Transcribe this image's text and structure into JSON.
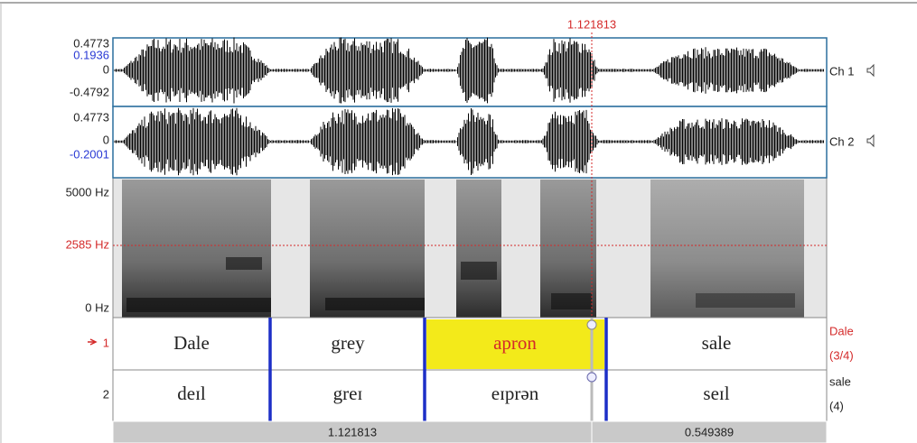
{
  "cursor_time": "1.121813",
  "channels": [
    {
      "name": "Ch 1",
      "ticks": [
        "0.4773",
        "0.1936",
        "0",
        "-0.4792"
      ]
    },
    {
      "name": "Ch 2",
      "ticks": [
        "0.4773",
        "0",
        "-0.2001"
      ]
    }
  ],
  "spectrogram": {
    "ticks": [
      "5000 Hz",
      "2585 Hz",
      "0 Hz"
    ]
  },
  "tiers": [
    {
      "number": "1",
      "intervals": [
        "Dale",
        "grey",
        "apron",
        "sale"
      ],
      "status": [
        "Dale",
        "(3/4)"
      ]
    },
    {
      "number": "2",
      "intervals": [
        "deɪl",
        "greɪ",
        "eɪprən",
        "seɪl"
      ],
      "status": [
        "sale",
        "(4)"
      ]
    }
  ],
  "bottom": [
    "1.121813",
    "0.549389"
  ]
}
